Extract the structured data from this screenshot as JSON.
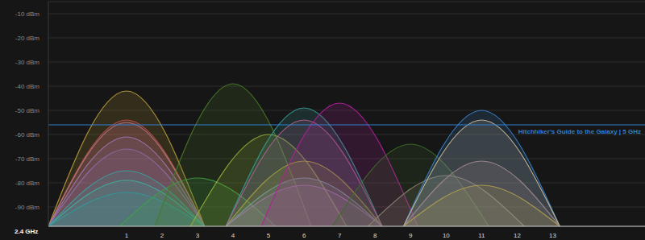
{
  "chart_data": {
    "type": "area",
    "xlabel": "2.4 GHz",
    "xlim": [
      -1.2,
      15.6
    ],
    "xticks": [
      1,
      2,
      3,
      4,
      5,
      6,
      7,
      8,
      9,
      10,
      11,
      12,
      13
    ],
    "ylim": [
      -98,
      -5
    ],
    "yticks": [
      {
        "value": -10,
        "label": "-10 dBm"
      },
      {
        "value": -20,
        "label": "-20 dBm"
      },
      {
        "value": -30,
        "label": "-30 dBm"
      },
      {
        "value": -40,
        "label": "-40 dBm"
      },
      {
        "value": -50,
        "label": "-50 dBm"
      },
      {
        "value": -60,
        "label": "-60 dBm"
      },
      {
        "value": -70,
        "label": "-70 dBm"
      },
      {
        "value": -80,
        "label": "-80 dBm"
      },
      {
        "value": -90,
        "label": "-90 dBm"
      }
    ],
    "grid": true,
    "annotations": [
      {
        "text": "Hitchhiker's Guide to the Galaxy | 5 GHz",
        "y": -56,
        "color": "#2f80d0"
      }
    ],
    "series": [
      {
        "color": "#b89a3a",
        "x": [
          -1.2,
          1,
          3.2
        ],
        "values": [
          -98,
          -42,
          -98
        ]
      },
      {
        "color": "#c0504d",
        "x": [
          -1.2,
          1,
          3.2
        ],
        "values": [
          -98,
          -54,
          -98
        ]
      },
      {
        "color": "#b07a8a",
        "x": [
          -1.2,
          1,
          3.2
        ],
        "values": [
          -98,
          -55,
          -98
        ]
      },
      {
        "color": "#9a7ab0",
        "x": [
          -1.2,
          1,
          3.2
        ],
        "values": [
          -98,
          -61,
          -98
        ]
      },
      {
        "color": "#8a6fa8",
        "x": [
          -1.2,
          1,
          3.2
        ],
        "values": [
          -98,
          -66,
          -98
        ]
      },
      {
        "color": "#3aa0a0",
        "x": [
          -1.2,
          1,
          3.2
        ],
        "values": [
          -98,
          -75,
          -98
        ]
      },
      {
        "color": "#3fb0a0",
        "x": [
          -1.2,
          1,
          3.2
        ],
        "values": [
          -98,
          -79,
          -98
        ]
      },
      {
        "color": "#2f9a9a",
        "x": [
          -1.2,
          1,
          3.2
        ],
        "values": [
          -98,
          -84,
          -98
        ]
      },
      {
        "color": "#3f9f4a",
        "x": [
          0.8,
          3,
          5.2
        ],
        "values": [
          -98,
          -78,
          -98
        ]
      },
      {
        "color": "#4a7a28",
        "x": [
          1.8,
          4,
          6.2
        ],
        "values": [
          -98,
          -39,
          -98
        ]
      },
      {
        "color": "#8fae3a",
        "x": [
          2.8,
          5,
          7.2
        ],
        "values": [
          -98,
          -60,
          -98
        ]
      },
      {
        "color": "#3a9a9a",
        "x": [
          3.8,
          6,
          8.2
        ],
        "values": [
          -98,
          -49,
          -98
        ]
      },
      {
        "color": "#b06090",
        "x": [
          3.8,
          6,
          8.2
        ],
        "values": [
          -98,
          -54,
          -98
        ]
      },
      {
        "color": "#a0a040",
        "x": [
          3.8,
          6,
          8.2
        ],
        "values": [
          -98,
          -71,
          -98
        ]
      },
      {
        "color": "#7a9a9a",
        "x": [
          3.8,
          6,
          8.2
        ],
        "values": [
          -98,
          -78,
          -98
        ]
      },
      {
        "color": "#9a7aa0",
        "x": [
          3.8,
          6,
          8.2
        ],
        "values": [
          -98,
          -81,
          -98
        ]
      },
      {
        "color": "#b0209a",
        "x": [
          4.8,
          7,
          9.2
        ],
        "values": [
          -98,
          -47,
          -98
        ]
      },
      {
        "color": "#3d6b2a",
        "x": [
          6.8,
          9,
          11.2
        ],
        "values": [
          -98,
          -64,
          -98
        ]
      },
      {
        "color": "#8a8070",
        "x": [
          7.8,
          10,
          12.2
        ],
        "values": [
          -98,
          -77,
          -98
        ]
      },
      {
        "color": "#3b7fc4",
        "x": [
          8.8,
          11,
          13.2
        ],
        "values": [
          -98,
          -50,
          -98
        ]
      },
      {
        "color": "#c8b89a",
        "x": [
          8.8,
          11,
          13.2
        ],
        "values": [
          -98,
          -54,
          -98
        ]
      },
      {
        "color": "#a08a90",
        "x": [
          8.8,
          11,
          13.2
        ],
        "values": [
          -98,
          -71,
          -98
        ]
      },
      {
        "color": "#b0a050",
        "x": [
          8.8,
          11,
          13.2
        ],
        "values": [
          -98,
          -81,
          -98
        ]
      }
    ]
  }
}
